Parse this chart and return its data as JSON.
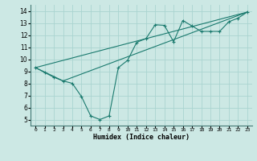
{
  "xlabel": "Humidex (Indice chaleur)",
  "background_color": "#cce8e4",
  "grid_color": "#aad4d0",
  "line_color": "#1a7a6e",
  "xlim": [
    -0.5,
    23.5
  ],
  "ylim": [
    4.5,
    14.5
  ],
  "xticks": [
    0,
    1,
    2,
    3,
    4,
    5,
    6,
    7,
    8,
    9,
    10,
    11,
    12,
    13,
    14,
    15,
    16,
    17,
    18,
    19,
    20,
    21,
    22,
    23
  ],
  "yticks": [
    5,
    6,
    7,
    8,
    9,
    10,
    11,
    12,
    13,
    14
  ],
  "line1_x": [
    0,
    1,
    2,
    3,
    4,
    5,
    6,
    7,
    8,
    9,
    10,
    11,
    12,
    13,
    14,
    15,
    16,
    17,
    18,
    19,
    20,
    21,
    22,
    23
  ],
  "line1_y": [
    9.3,
    8.9,
    8.5,
    8.2,
    8.0,
    6.9,
    5.3,
    5.0,
    5.3,
    9.3,
    9.9,
    11.4,
    11.7,
    12.85,
    12.8,
    11.45,
    13.2,
    12.75,
    12.3,
    12.3,
    12.3,
    13.1,
    13.4,
    13.9
  ],
  "line2_x": [
    0,
    3,
    23
  ],
  "line2_y": [
    9.3,
    8.2,
    13.9
  ],
  "line3_x": [
    0,
    23
  ],
  "line3_y": [
    9.3,
    13.9
  ]
}
